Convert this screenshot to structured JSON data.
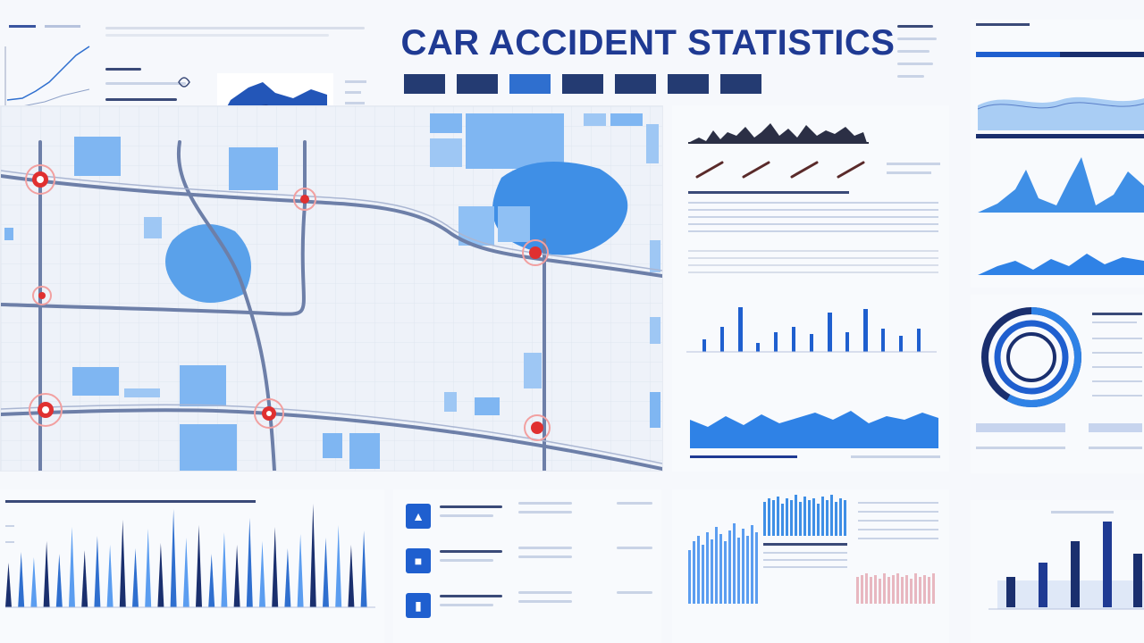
{
  "header": {
    "title": "CAR ACCIDENT STATISTICS"
  },
  "tabs": [],
  "colors": {
    "accent": "#1f3a93",
    "blue": "#2f7de0",
    "light_blue": "#7fb6f2",
    "hotspot": "#e03030",
    "navy": "#1e2f6e"
  },
  "icons": [
    "location-icon",
    "document-icon",
    "chart-icon"
  ]
}
